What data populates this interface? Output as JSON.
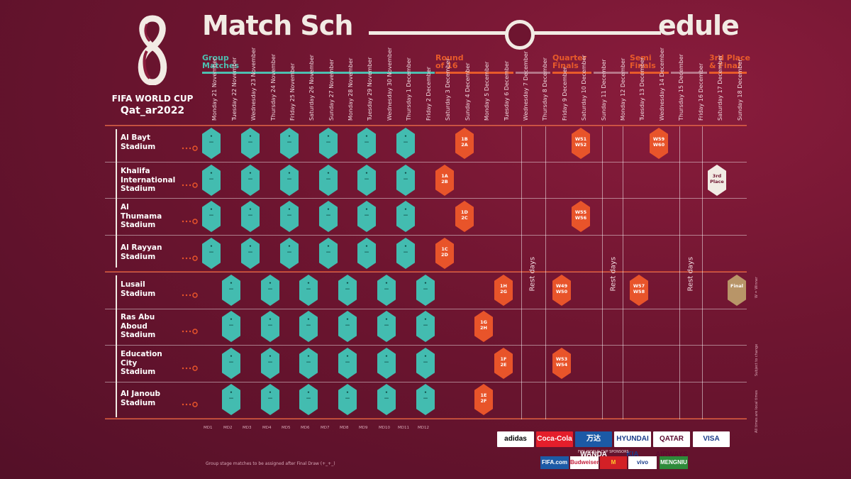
{
  "logo": {
    "title": "FIFA WORLD CUP",
    "subtitle": "Qat_ar2022"
  },
  "title": {
    "left": "Match Sch",
    "right": "edule"
  },
  "phases": [
    {
      "label_1": "Group",
      "label_2": "Matches",
      "color": "teal"
    },
    {
      "label_1": "Round",
      "label_2": "of 16",
      "color": "orange"
    },
    {
      "label_1": "Quarter",
      "label_2": "Finals",
      "color": "orange"
    },
    {
      "label_1": "Semi",
      "label_2": "Finals",
      "color": "orange"
    },
    {
      "label_1": "3rd Place",
      "label_2": "& Final",
      "color": "orange"
    }
  ],
  "dates": [
    [
      "Monday",
      "21 November"
    ],
    [
      "Tuesday",
      "22 November"
    ],
    [
      "Wednesday",
      "23 November"
    ],
    [
      "Thursday",
      "24 November"
    ],
    [
      "Friday",
      "25 November"
    ],
    [
      "Saturday",
      "26 November"
    ],
    [
      "Sunday",
      "27 November"
    ],
    [
      "Monday",
      "28 November"
    ],
    [
      "Tuesday",
      "29 November"
    ],
    [
      "Wednesday",
      "30 November"
    ],
    [
      "Thursday",
      "1 December"
    ],
    [
      "Friday",
      "2 December"
    ],
    [
      "Saturday",
      "3 December"
    ],
    [
      "Sunday",
      "4 December"
    ],
    [
      "Monday",
      "5 December"
    ],
    [
      "Tuesday",
      "6 December"
    ],
    [
      "Wednesday",
      "7 December"
    ],
    [
      "Thursday",
      "8 December"
    ],
    [
      "Friday",
      "9 December"
    ],
    [
      "Saturday",
      "10 December"
    ],
    [
      "Sunday",
      "11 December"
    ],
    [
      "Monday",
      "12 December"
    ],
    [
      "Tuesday",
      "13 December"
    ],
    [
      "Wednesday",
      "14 December"
    ],
    [
      "Thursday",
      "15 December"
    ],
    [
      "Friday",
      "16 December"
    ],
    [
      "Saturday",
      "17 December"
    ],
    [
      "Sunday",
      "18 December"
    ]
  ],
  "stadiums": [
    {
      "name_1": "Al Bayt",
      "name_2": "Stadium",
      "name_3": ""
    },
    {
      "name_1": "Khalifa",
      "name_2": "International",
      "name_3": "Stadium"
    },
    {
      "name_1": "Al",
      "name_2": "Thumama",
      "name_3": "Stadium"
    },
    {
      "name_1": "Al Rayyan",
      "name_2": "Stadium",
      "name_3": ""
    },
    {
      "name_1": "Lusail",
      "name_2": "Stadium",
      "name_3": ""
    },
    {
      "name_1": "Ras Abu",
      "name_2": "Aboud",
      "name_3": "Stadium"
    },
    {
      "name_1": "Education",
      "name_2": "City",
      "name_3": "Stadium"
    },
    {
      "name_1": "Al Janoub",
      "name_2": "Stadium",
      "name_3": ""
    }
  ],
  "knockout": [
    {
      "row": 0,
      "col": 13,
      "l1": "1B",
      "l2": "2A",
      "color": "orange"
    },
    {
      "row": 1,
      "col": 12,
      "l1": "1A",
      "l2": "2B",
      "color": "orange"
    },
    {
      "row": 2,
      "col": 13,
      "l1": "1D",
      "l2": "2C",
      "color": "orange"
    },
    {
      "row": 3,
      "col": 12,
      "l1": "1C",
      "l2": "2D",
      "color": "orange"
    },
    {
      "row": 4,
      "col": 15,
      "l1": "1H",
      "l2": "2G",
      "color": "orange"
    },
    {
      "row": 5,
      "col": 14,
      "l1": "1G",
      "l2": "2H",
      "color": "orange"
    },
    {
      "row": 6,
      "col": 15,
      "l1": "1F",
      "l2": "2E",
      "color": "orange"
    },
    {
      "row": 7,
      "col": 14,
      "l1": "1E",
      "l2": "2F",
      "color": "orange"
    },
    {
      "row": 0,
      "col": 19,
      "l1": "W51",
      "l2": "W52",
      "color": "orange"
    },
    {
      "row": 2,
      "col": 19,
      "l1": "W55",
      "l2": "W56",
      "color": "orange"
    },
    {
      "row": 4,
      "col": 18,
      "l1": "W49",
      "l2": "W50",
      "color": "orange"
    },
    {
      "row": 6,
      "col": 18,
      "l1": "W53",
      "l2": "W54",
      "color": "orange"
    },
    {
      "row": 0,
      "col": 23,
      "l1": "W59",
      "l2": "W60",
      "color": "orange"
    },
    {
      "row": 4,
      "col": 22,
      "l1": "W57",
      "l2": "W58",
      "color": "orange"
    },
    {
      "row": 1,
      "col": 26,
      "l1": "3rd",
      "l2": "Place",
      "color": "white"
    },
    {
      "row": 4,
      "col": 27,
      "l1": "Final",
      "l2": "",
      "color": "gold"
    }
  ],
  "rest_days": [
    "Rest days",
    "Rest days",
    "Rest days"
  ],
  "bottom_codes": [
    "MD1",
    "MD2",
    "MD3",
    "MD4",
    "MD5",
    "MD6",
    "MD7",
    "MD8",
    "MD9",
    "MD10",
    "MD11",
    "MD12"
  ],
  "footnote": "Group stage matches to be assigned after Final Draw (+_+_)",
  "sponsors_top": [
    "adidas",
    "Coca-Cola",
    "万达 WANDA",
    "HYUNDAI KIA",
    "QATAR AIRWAYS",
    "VISA"
  ],
  "sponsors_bottom_label": "FIFA WORLD CUP SPONSORS",
  "sponsors_bottom": [
    "FIFA.com",
    "Budweiser",
    "M",
    "vivo",
    "MENGNIU"
  ],
  "side_notes": [
    "W = Winner",
    "Subject to change",
    "All times are local times"
  ]
}
